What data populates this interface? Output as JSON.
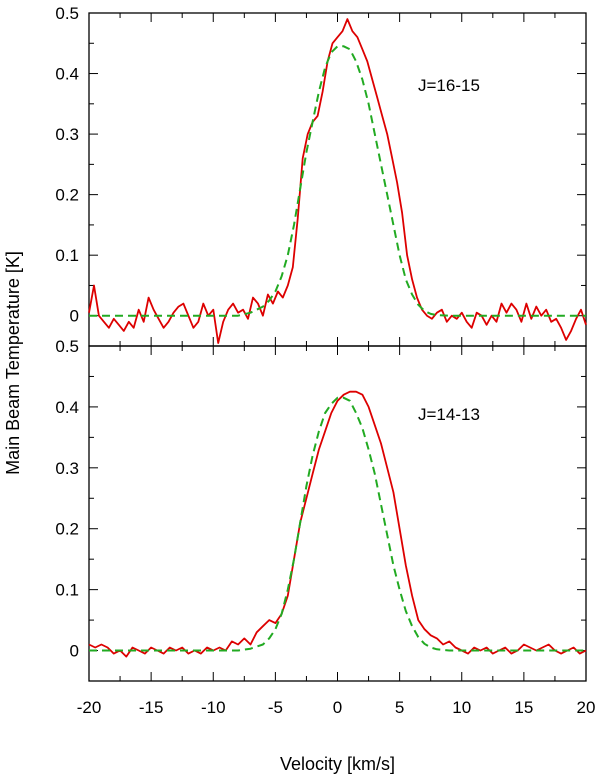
{
  "chart_data": [
    {
      "type": "line",
      "title": "",
      "annotation": "J=16-15",
      "xlim": [
        -20,
        20
      ],
      "ylim": [
        -0.05,
        0.5
      ],
      "yticks": [
        0,
        0.1,
        0.2,
        0.3,
        0.4,
        0.5
      ],
      "ytick_labels": [
        "0",
        "0.1",
        "0.2",
        "0.3",
        "0.4",
        "0.5"
      ],
      "xticks": [
        -20,
        -15,
        -10,
        -5,
        0,
        5,
        10,
        15,
        20
      ],
      "series": [
        {
          "color": "#dd0000",
          "style": "solid",
          "x": [
            -20,
            -19.6,
            -19.2,
            -18.8,
            -18.4,
            -18,
            -17.6,
            -17.2,
            -16.8,
            -16.4,
            -16,
            -15.6,
            -15.2,
            -14.8,
            -14.4,
            -14,
            -13.6,
            -13.2,
            -12.8,
            -12.4,
            -12,
            -11.6,
            -11.2,
            -10.8,
            -10.4,
            -10,
            -9.6,
            -9.2,
            -8.8,
            -8.4,
            -8,
            -7.6,
            -7.2,
            -6.8,
            -6.4,
            -6,
            -5.6,
            -5.2,
            -4.8,
            -4.4,
            -4,
            -3.6,
            -3.2,
            -2.8,
            -2.4,
            -2,
            -1.6,
            -1.2,
            -0.8,
            -0.4,
            0,
            0.4,
            0.8,
            1.2,
            1.6,
            2,
            2.4,
            2.8,
            3.2,
            3.6,
            4,
            4.4,
            4.8,
            5.2,
            5.6,
            6,
            6.4,
            6.8,
            7.2,
            7.6,
            8,
            8.4,
            8.8,
            9.2,
            9.6,
            10,
            10.4,
            10.8,
            11.2,
            11.6,
            12,
            12.4,
            12.8,
            13.2,
            13.6,
            14,
            14.4,
            14.8,
            15.2,
            15.6,
            16,
            16.4,
            16.8,
            17.2,
            17.6,
            18,
            18.4,
            18.8,
            19.2,
            19.6,
            20
          ],
          "y": [
            0.005,
            0.05,
            0.0,
            -0.01,
            -0.02,
            -0.005,
            -0.015,
            -0.025,
            -0.01,
            -0.02,
            0.01,
            -0.01,
            0.03,
            0.01,
            -0.005,
            -0.02,
            -0.01,
            0.005,
            0.015,
            0.02,
            0.0,
            -0.02,
            -0.01,
            0.02,
            0.0,
            0.01,
            -0.045,
            -0.01,
            0.01,
            0.02,
            0.005,
            0.01,
            -0.005,
            0.03,
            0.02,
            0.0,
            0.035,
            0.02,
            0.04,
            0.03,
            0.05,
            0.08,
            0.16,
            0.26,
            0.3,
            0.32,
            0.33,
            0.37,
            0.42,
            0.45,
            0.46,
            0.47,
            0.49,
            0.47,
            0.46,
            0.44,
            0.42,
            0.39,
            0.36,
            0.33,
            0.3,
            0.26,
            0.22,
            0.17,
            0.1,
            0.06,
            0.03,
            0.01,
            0.0,
            -0.005,
            0.005,
            0.01,
            -0.01,
            0.0,
            -0.005,
            0.005,
            -0.01,
            -0.02,
            0.005,
            0.0,
            -0.015,
            0.0,
            -0.01,
            0.02,
            0.005,
            0.02,
            0.01,
            -0.01,
            0.02,
            -0.005,
            0.015,
            0.0,
            0.01,
            -0.01,
            -0.005,
            -0.02,
            -0.04,
            -0.025,
            -0.005,
            0.01,
            -0.015
          ]
        },
        {
          "color": "#22aa22",
          "style": "dashed",
          "x": [
            -20,
            -19,
            -18,
            -17,
            -16,
            -15,
            -14,
            -13,
            -12,
            -11,
            -10,
            -9,
            -8,
            -7,
            -6,
            -5.5,
            -5,
            -4.5,
            -4,
            -3.5,
            -3,
            -2.5,
            -2,
            -1.5,
            -1,
            -0.5,
            0,
            0.5,
            1,
            1.5,
            2,
            2.5,
            3,
            3.5,
            4,
            4.5,
            5,
            5.5,
            6,
            6.5,
            7,
            7.5,
            8,
            9,
            10,
            11,
            12,
            13,
            14,
            15,
            16,
            17,
            18,
            19,
            20
          ],
          "y": [
            0,
            0,
            0,
            0,
            0,
            0,
            0,
            0,
            0,
            0,
            0,
            0,
            0,
            0.005,
            0.015,
            0.025,
            0.04,
            0.065,
            0.1,
            0.15,
            0.21,
            0.27,
            0.32,
            0.37,
            0.41,
            0.435,
            0.445,
            0.445,
            0.44,
            0.42,
            0.39,
            0.35,
            0.3,
            0.25,
            0.2,
            0.15,
            0.1,
            0.06,
            0.035,
            0.018,
            0.008,
            0.003,
            0.001,
            0,
            0,
            0,
            0,
            0,
            0,
            0,
            0,
            0,
            0,
            0,
            0
          ]
        }
      ]
    },
    {
      "type": "line",
      "title": "",
      "annotation": "J=14-13",
      "xlim": [
        -20,
        20
      ],
      "ylim": [
        -0.05,
        0.5
      ],
      "yticks": [
        0,
        0.1,
        0.2,
        0.3,
        0.4,
        0.5
      ],
      "ytick_labels": [
        "0",
        "0.1",
        "0.2",
        "0.3",
        "0.4",
        "0.5"
      ],
      "xticks": [
        -20,
        -15,
        -10,
        -5,
        0,
        5,
        10,
        15,
        20
      ],
      "xtick_labels": [
        "-20",
        "-15",
        "-10",
        "-5",
        "0",
        "5",
        "10",
        "15",
        "20"
      ],
      "xlabel": "Velocity [km/s]",
      "series": [
        {
          "color": "#dd0000",
          "style": "solid",
          "x": [
            -20,
            -19.5,
            -19,
            -18.5,
            -18,
            -17.5,
            -17,
            -16.5,
            -16,
            -15.5,
            -15,
            -14.5,
            -14,
            -13.5,
            -13,
            -12.5,
            -12,
            -11.5,
            -11,
            -10.5,
            -10,
            -9.5,
            -9,
            -8.5,
            -8,
            -7.5,
            -7,
            -6.5,
            -6,
            -5.5,
            -5,
            -4.5,
            -4,
            -3.5,
            -3,
            -2.5,
            -2,
            -1.5,
            -1,
            -0.5,
            0,
            0.5,
            1,
            1.5,
            2,
            2.5,
            3,
            3.5,
            4,
            4.5,
            5,
            5.5,
            6,
            6.5,
            7,
            7.5,
            8,
            8.5,
            9,
            9.5,
            10,
            10.5,
            11,
            11.5,
            12,
            12.5,
            13,
            13.5,
            14,
            14.5,
            15,
            15.5,
            16,
            16.5,
            17,
            17.5,
            18,
            18.5,
            19,
            19.5,
            20
          ],
          "y": [
            0.01,
            0.005,
            0.01,
            0.005,
            -0.005,
            0.0,
            -0.01,
            0.005,
            0.0,
            -0.005,
            0.005,
            0.0,
            -0.005,
            0.005,
            0.0,
            0.005,
            -0.005,
            0.0,
            -0.005,
            0.005,
            0.0,
            0.005,
            0.0,
            0.015,
            0.01,
            0.02,
            0.01,
            0.03,
            0.04,
            0.05,
            0.045,
            0.06,
            0.09,
            0.15,
            0.21,
            0.25,
            0.29,
            0.33,
            0.36,
            0.39,
            0.41,
            0.42,
            0.425,
            0.425,
            0.42,
            0.4,
            0.37,
            0.34,
            0.3,
            0.26,
            0.2,
            0.14,
            0.09,
            0.05,
            0.035,
            0.025,
            0.02,
            0.01,
            0.015,
            0.005,
            0.0,
            -0.005,
            0.005,
            0.0,
            0.005,
            -0.005,
            0.0,
            0.005,
            -0.005,
            0.0,
            0.01,
            0.005,
            0.0,
            0.005,
            0.01,
            0.0,
            -0.005,
            0.0,
            0.005,
            -0.005,
            0.0
          ]
        },
        {
          "color": "#22aa22",
          "style": "dashed",
          "x": [
            -20,
            -19,
            -18,
            -17,
            -16,
            -15,
            -14,
            -13,
            -12,
            -11,
            -10,
            -9,
            -8,
            -7,
            -6,
            -5.5,
            -5,
            -4.5,
            -4,
            -3.5,
            -3,
            -2.5,
            -2,
            -1.5,
            -1,
            -0.5,
            0,
            0.5,
            1,
            1.5,
            2,
            2.5,
            3,
            3.5,
            4,
            4.5,
            5,
            5.5,
            6,
            6.5,
            7,
            7.5,
            8,
            9,
            10,
            11,
            12,
            13,
            14,
            15,
            16,
            17,
            18,
            19,
            20
          ],
          "y": [
            0,
            0,
            0,
            0,
            0,
            0,
            0,
            0,
            0,
            0,
            0,
            0,
            0,
            0.003,
            0.01,
            0.02,
            0.035,
            0.06,
            0.1,
            0.15,
            0.21,
            0.27,
            0.32,
            0.36,
            0.39,
            0.405,
            0.415,
            0.415,
            0.41,
            0.39,
            0.365,
            0.33,
            0.29,
            0.24,
            0.19,
            0.14,
            0.1,
            0.065,
            0.04,
            0.022,
            0.011,
            0.005,
            0.002,
            0,
            0,
            0,
            0,
            0,
            0,
            0,
            0,
            0,
            0,
            0,
            0
          ]
        }
      ]
    }
  ],
  "shared_ylabel": "Main Beam Temperature [K]"
}
